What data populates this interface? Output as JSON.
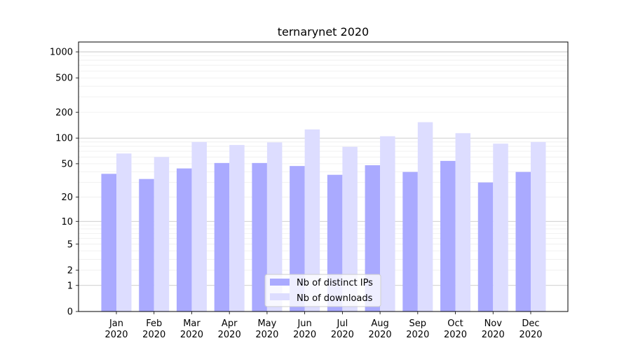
{
  "chart_data": {
    "type": "bar",
    "title": "ternarynet 2020",
    "xlabel": "",
    "ylabel": "",
    "y_scale": "symlog",
    "ylim": [
      0,
      1300
    ],
    "y_ticks": [
      0,
      1,
      2,
      5,
      10,
      20,
      50,
      100,
      200,
      500,
      1000
    ],
    "y_tick_labels": [
      "0",
      "1",
      "2",
      "5",
      "10",
      "20",
      "50",
      "100",
      "200",
      "500",
      "1000"
    ],
    "grid": true,
    "legend_position": "bottom-center",
    "categories": [
      {
        "month": "Jan",
        "year": "2020"
      },
      {
        "month": "Feb",
        "year": "2020"
      },
      {
        "month": "Mar",
        "year": "2020"
      },
      {
        "month": "Apr",
        "year": "2020"
      },
      {
        "month": "May",
        "year": "2020"
      },
      {
        "month": "Jun",
        "year": "2020"
      },
      {
        "month": "Jul",
        "year": "2020"
      },
      {
        "month": "Aug",
        "year": "2020"
      },
      {
        "month": "Sep",
        "year": "2020"
      },
      {
        "month": "Oct",
        "year": "2020"
      },
      {
        "month": "Nov",
        "year": "2020"
      },
      {
        "month": "Dec",
        "year": "2020"
      }
    ],
    "series": [
      {
        "name": "Nb of distinct IPs",
        "color": "#aaaaff",
        "values": [
          38,
          33,
          44,
          51,
          51,
          47,
          37,
          48,
          40,
          54,
          30,
          40
        ]
      },
      {
        "name": "Nb of downloads",
        "color": "#ddddff",
        "values": [
          66,
          60,
          90,
          83,
          89,
          126,
          79,
          105,
          153,
          114,
          86,
          90
        ]
      }
    ]
  }
}
